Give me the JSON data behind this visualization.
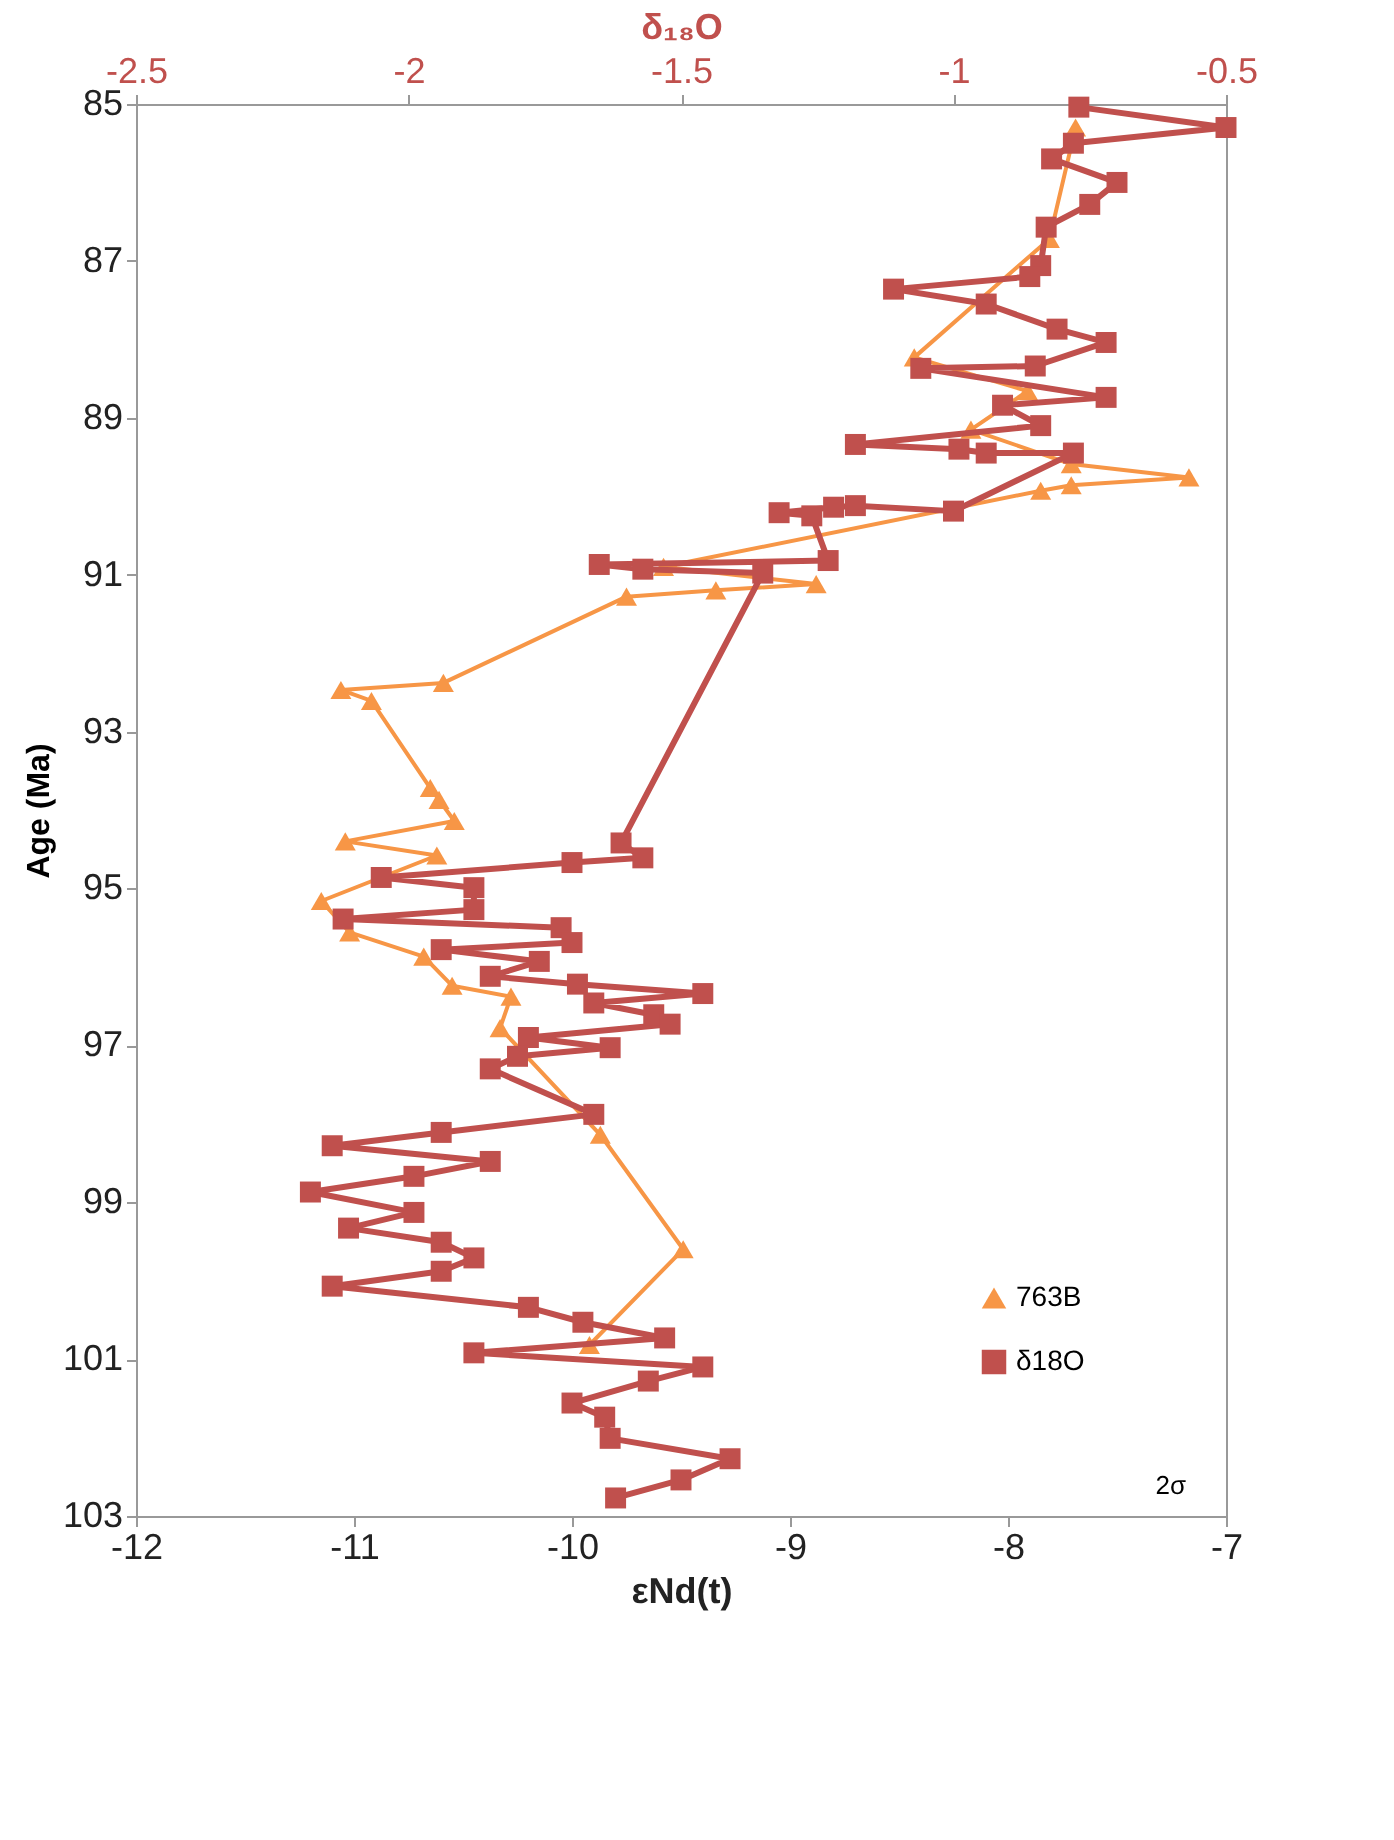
{
  "chart_data": {
    "type": "line",
    "xlabel": "εNd(t)",
    "x2label": "δ₁₈O",
    "ylabel": "Age (Ma)",
    "xlim": [
      -12,
      -7
    ],
    "xticks": [
      -12,
      -11,
      -10,
      -9,
      -8,
      -7
    ],
    "x2lim": [
      -2.5,
      -0.5
    ],
    "x2ticks": [
      -2.5,
      -2,
      -1.5,
      -1,
      -0.5
    ],
    "ylim": [
      103,
      85
    ],
    "yticks": [
      85,
      87,
      89,
      91,
      93,
      95,
      97,
      99,
      101,
      103
    ],
    "grid": false,
    "legend": "bottom right",
    "annotations": [
      "2σ"
    ],
    "series": [
      {
        "name": "763B",
        "color": "#f79646",
        "marker": "triangle",
        "x": [
          -7.69,
          -7.81,
          -8.43,
          -7.91,
          -8.17,
          -7.71,
          -7.17,
          -7.71,
          -7.85,
          -9.58,
          -8.88,
          -9.34,
          -9.75,
          -10.59,
          -11.06,
          -10.92,
          -10.65,
          -10.61,
          -10.54,
          -11.04,
          -10.62,
          -11.15,
          -11.02,
          -10.68,
          -10.55,
          -10.28,
          -10.33,
          -9.87,
          -9.49,
          -9.92
        ],
        "values": [
          85.3,
          86.72,
          88.23,
          88.66,
          89.15,
          89.59,
          89.76,
          89.86,
          89.93,
          90.9,
          91.12,
          91.2,
          91.28,
          92.38,
          92.47,
          92.61,
          93.72,
          93.87,
          94.14,
          94.4,
          94.58,
          95.16,
          95.56,
          95.87,
          96.24,
          96.38,
          96.78,
          98.14,
          99.6,
          100.82
        ]
      },
      {
        "name": "δ18O",
        "color": "#c0504d",
        "marker": "square",
        "axis": "x2",
        "x": [
          -0.77,
          -0.5,
          -0.78,
          -0.82,
          -0.7,
          -0.75,
          -0.83,
          -0.84,
          -0.86,
          -1.11,
          -0.94,
          -0.81,
          -0.72,
          -0.85,
          -1.06,
          -0.72,
          -0.91,
          -0.84,
          -1.18,
          -0.99,
          -0.94,
          -0.78,
          -1.0,
          -1.18,
          -1.22,
          -1.32,
          -1.26,
          -1.23,
          -1.65,
          -1.57,
          -1.35,
          -1.61,
          -1.57,
          -1.7,
          -2.05,
          -1.88,
          -1.88,
          -2.12,
          -1.72,
          -1.7,
          -1.94,
          -1.76,
          -1.85,
          -1.69,
          -1.46,
          -1.66,
          -1.55,
          -1.52,
          -1.78,
          -1.63,
          -1.8,
          -1.85,
          -1.66,
          -1.94,
          -2.14,
          -1.85,
          -1.99,
          -2.18,
          -1.99,
          -2.11,
          -1.94,
          -1.88,
          -1.94,
          -2.14,
          -1.78,
          -1.68,
          -1.53,
          -1.88,
          -1.46,
          -1.56,
          -1.7,
          -1.64,
          -1.63,
          -1.41,
          -1.5,
          -1.62
        ],
        "values": [
          85.04,
          85.3,
          85.5,
          85.7,
          86.0,
          86.28,
          86.57,
          87.06,
          87.2,
          87.36,
          87.55,
          87.87,
          88.04,
          88.34,
          88.37,
          88.74,
          88.84,
          89.1,
          89.34,
          89.4,
          89.45,
          89.45,
          90.19,
          90.12,
          90.14,
          90.21,
          90.25,
          90.82,
          90.87,
          90.93,
          90.98,
          94.42,
          94.61,
          94.67,
          94.86,
          94.99,
          95.27,
          95.39,
          95.5,
          95.69,
          95.78,
          95.93,
          96.12,
          96.22,
          96.34,
          96.46,
          96.61,
          96.73,
          96.9,
          97.03,
          97.14,
          97.3,
          97.88,
          98.11,
          98.28,
          98.48,
          98.67,
          98.87,
          99.13,
          99.33,
          99.51,
          99.71,
          99.88,
          100.07,
          100.34,
          100.53,
          100.73,
          100.92,
          101.1,
          101.28,
          101.56,
          101.74,
          102.01,
          102.27,
          102.54,
          102.77
        ]
      }
    ]
  }
}
